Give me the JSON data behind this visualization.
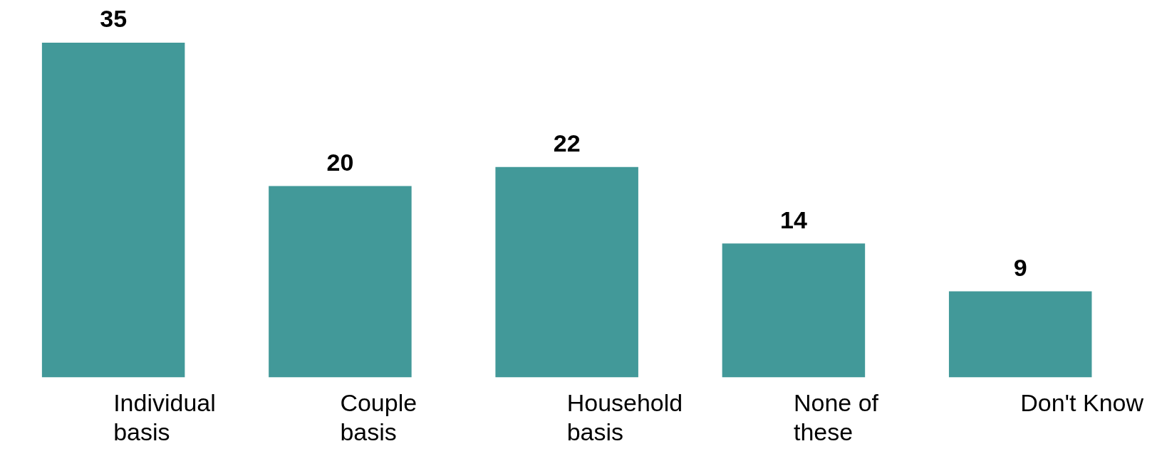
{
  "chart_data": {
    "type": "bar",
    "categories": [
      "Individual\nbasis",
      "Couple\nbasis",
      "Household\nbasis",
      "None of\nthese",
      "Don't Know"
    ],
    "values": [
      35,
      20,
      22,
      14,
      9
    ],
    "color": "#429999",
    "data_labels": true
  }
}
